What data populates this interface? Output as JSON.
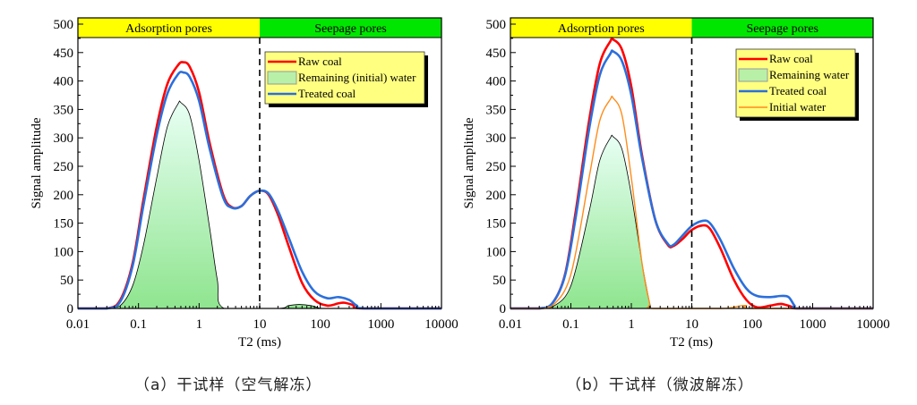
{
  "captions": [
    "（a）干试样（空气解冻）",
    "（b）干试样（微波解冻）"
  ],
  "colors": {
    "raw": "#ff0000",
    "treated": "#2b6fdc",
    "remaining_fill": "#8fe58f",
    "initial": "#ff8c1a",
    "adsorption_band": "#ffff00",
    "seepage_band": "#00e600",
    "legend_bg": "#ffff80"
  },
  "chart_data": [
    {
      "type": "line",
      "xscale": "log",
      "xlim": [
        0.01,
        10000
      ],
      "ylim": [
        0,
        500
      ],
      "xlabel": "T2 (ms)",
      "ylabel": "Signal amplitude",
      "xticks": [
        "0.01",
        "0.1",
        "1",
        "10",
        "100",
        "1000",
        "10000"
      ],
      "yticks": [
        "0",
        "50",
        "100",
        "150",
        "200",
        "250",
        "300",
        "350",
        "400",
        "450",
        "500"
      ],
      "divider_x": 10,
      "regions": [
        "Adsorption pores",
        "Seepage pores"
      ],
      "legend_placement": "top-right",
      "series": [
        {
          "name": "Raw coal",
          "style": "raw",
          "points": [
            [
              0.01,
              0
            ],
            [
              0.03,
              0
            ],
            [
              0.05,
              15
            ],
            [
              0.08,
              80
            ],
            [
              0.12,
              190
            ],
            [
              0.2,
              320
            ],
            [
              0.3,
              395
            ],
            [
              0.45,
              428
            ],
            [
              0.55,
              433
            ],
            [
              0.7,
              425
            ],
            [
              1,
              380
            ],
            [
              1.5,
              290
            ],
            [
              2.5,
              200
            ],
            [
              3.5,
              178
            ],
            [
              5,
              180
            ],
            [
              7,
              198
            ],
            [
              10,
              207
            ],
            [
              14,
              200
            ],
            [
              20,
              165
            ],
            [
              30,
              110
            ],
            [
              50,
              45
            ],
            [
              80,
              15
            ],
            [
              130,
              5
            ],
            [
              200,
              9
            ],
            [
              250,
              10
            ],
            [
              350,
              6
            ],
            [
              500,
              0
            ],
            [
              10000,
              0
            ]
          ]
        },
        {
          "name": "Remaining (initial) water",
          "style": "fill",
          "points": [
            [
              0.03,
              0
            ],
            [
              0.05,
              5
            ],
            [
              0.08,
              40
            ],
            [
              0.12,
              110
            ],
            [
              0.2,
              230
            ],
            [
              0.3,
              320
            ],
            [
              0.45,
              360
            ],
            [
              0.5,
              362
            ],
            [
              0.7,
              340
            ],
            [
              1,
              260
            ],
            [
              1.5,
              140
            ],
            [
              2,
              50
            ],
            [
              2.6,
              0
            ],
            [
              20,
              0
            ],
            [
              30,
              5
            ],
            [
              45,
              7
            ],
            [
              70,
              5
            ],
            [
              100,
              0
            ]
          ]
        },
        {
          "name": "Treated coal",
          "style": "treated",
          "points": [
            [
              0.01,
              0
            ],
            [
              0.03,
              0
            ],
            [
              0.05,
              12
            ],
            [
              0.08,
              75
            ],
            [
              0.12,
              180
            ],
            [
              0.2,
              305
            ],
            [
              0.3,
              378
            ],
            [
              0.45,
              412
            ],
            [
              0.55,
              415
            ],
            [
              0.7,
              407
            ],
            [
              1,
              365
            ],
            [
              1.5,
              280
            ],
            [
              2.5,
              195
            ],
            [
              3.5,
              177
            ],
            [
              5,
              180
            ],
            [
              7,
              198
            ],
            [
              10,
              207
            ],
            [
              14,
              202
            ],
            [
              20,
              172
            ],
            [
              30,
              125
            ],
            [
              50,
              65
            ],
            [
              80,
              30
            ],
            [
              130,
              18
            ],
            [
              200,
              20
            ],
            [
              300,
              15
            ],
            [
              400,
              5
            ],
            [
              550,
              0
            ],
            [
              10000,
              0
            ]
          ]
        }
      ]
    },
    {
      "type": "line",
      "xscale": "log",
      "xlim": [
        0.01,
        10000
      ],
      "ylim": [
        0,
        500
      ],
      "xlabel": "T2 (ms)",
      "ylabel": "Signal amplitude",
      "xticks": [
        "0.01",
        "0.1",
        "1",
        "10",
        "100",
        "1000",
        "10000"
      ],
      "yticks": [
        "0",
        "50",
        "100",
        "150",
        "200",
        "250",
        "300",
        "350",
        "400",
        "450",
        "500"
      ],
      "divider_x": 10,
      "regions": [
        "Adsorption pores",
        "Seepage pores"
      ],
      "legend_placement": "top-right",
      "series": [
        {
          "name": "Raw coal",
          "style": "raw",
          "points": [
            [
              0.01,
              0
            ],
            [
              0.03,
              0
            ],
            [
              0.05,
              10
            ],
            [
              0.08,
              60
            ],
            [
              0.12,
              170
            ],
            [
              0.2,
              330
            ],
            [
              0.3,
              430
            ],
            [
              0.45,
              470
            ],
            [
              0.5,
              473
            ],
            [
              0.7,
              455
            ],
            [
              1,
              390
            ],
            [
              1.5,
              270
            ],
            [
              2.5,
              155
            ],
            [
              4,
              112
            ],
            [
              5,
              110
            ],
            [
              7,
              122
            ],
            [
              10,
              138
            ],
            [
              15,
              146
            ],
            [
              20,
              140
            ],
            [
              30,
              105
            ],
            [
              50,
              50
            ],
            [
              80,
              15
            ],
            [
              120,
              2
            ],
            [
              200,
              5
            ],
            [
              300,
              8
            ],
            [
              450,
              3
            ],
            [
              600,
              0
            ],
            [
              10000,
              0
            ]
          ]
        },
        {
          "name": "Remaining water",
          "style": "fill",
          "points": [
            [
              0.03,
              0
            ],
            [
              0.05,
              3
            ],
            [
              0.1,
              40
            ],
            [
              0.2,
              170
            ],
            [
              0.3,
              260
            ],
            [
              0.45,
              300
            ],
            [
              0.5,
              302
            ],
            [
              0.7,
              280
            ],
            [
              1,
              200
            ],
            [
              1.5,
              80
            ],
            [
              2,
              10
            ],
            [
              2.1,
              0
            ]
          ]
        },
        {
          "name": "Treated coal",
          "style": "treated",
          "points": [
            [
              0.01,
              0
            ],
            [
              0.03,
              0
            ],
            [
              0.05,
              10
            ],
            [
              0.08,
              58
            ],
            [
              0.12,
              160
            ],
            [
              0.2,
              315
            ],
            [
              0.3,
              410
            ],
            [
              0.45,
              448
            ],
            [
              0.5,
              452
            ],
            [
              0.7,
              435
            ],
            [
              1,
              375
            ],
            [
              1.5,
              265
            ],
            [
              2.5,
              155
            ],
            [
              4,
              114
            ],
            [
              5,
              112
            ],
            [
              7,
              128
            ],
            [
              10,
              145
            ],
            [
              15,
              154
            ],
            [
              20,
              150
            ],
            [
              30,
              120
            ],
            [
              50,
              70
            ],
            [
              80,
              35
            ],
            [
              120,
              22
            ],
            [
              200,
              20
            ],
            [
              300,
              22
            ],
            [
              400,
              20
            ],
            [
              500,
              5
            ],
            [
              600,
              0
            ],
            [
              10000,
              0
            ]
          ]
        },
        {
          "name": "Initial water",
          "style": "initial",
          "points": [
            [
              0.01,
              0
            ],
            [
              0.03,
              0
            ],
            [
              0.05,
              5
            ],
            [
              0.1,
              60
            ],
            [
              0.2,
              230
            ],
            [
              0.3,
              330
            ],
            [
              0.45,
              368
            ],
            [
              0.5,
              370
            ],
            [
              0.7,
              340
            ],
            [
              1,
              230
            ],
            [
              1.5,
              80
            ],
            [
              2,
              10
            ],
            [
              2.3,
              0
            ],
            [
              30,
              0
            ],
            [
              60,
              4
            ],
            [
              80,
              5
            ],
            [
              110,
              0
            ],
            [
              10000,
              0
            ]
          ]
        }
      ]
    }
  ]
}
